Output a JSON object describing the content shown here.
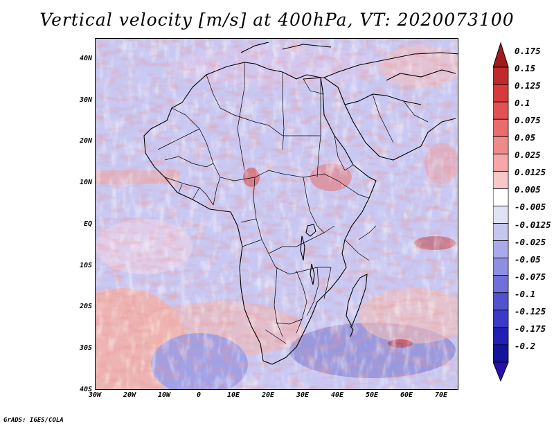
{
  "title": "Vertical velocity [m/s] at 400hPa, VT: 2020073100",
  "footer": "GrADS: IGES/COLA",
  "map": {
    "lat_labels": [
      "40N",
      "30N",
      "20N",
      "10N",
      "EQ",
      "10S",
      "20S",
      "30S",
      "40S"
    ],
    "lon_labels": [
      "30W",
      "20W",
      "10W",
      "0",
      "10E",
      "20E",
      "30E",
      "40E",
      "50E",
      "60E",
      "70E"
    ],
    "lat_range": [
      -40,
      45
    ],
    "lon_range": [
      -30,
      75
    ],
    "border_color": "#000000"
  },
  "colorbar": {
    "labels": [
      "0.175",
      "0.15",
      "0.125",
      "0.1",
      "0.075",
      "0.05",
      "0.025",
      "0.0125",
      "0.005",
      "-0.005",
      "-0.0125",
      "-0.025",
      "-0.05",
      "-0.075",
      "-0.1",
      "-0.125",
      "-0.175",
      "-0.2"
    ],
    "colors": [
      "#a01c1c",
      "#c02a2a",
      "#d63a3a",
      "#e25252",
      "#ea6c6c",
      "#ef8a8a",
      "#f4a8a8",
      "#f8c8c8",
      "#ffffff",
      "#e2e2f6",
      "#c6c6f0",
      "#aaaaea",
      "#8e8ee2",
      "#7070da",
      "#5252d0",
      "#3a3ac6",
      "#2020b4",
      "#14149c"
    ]
  }
}
